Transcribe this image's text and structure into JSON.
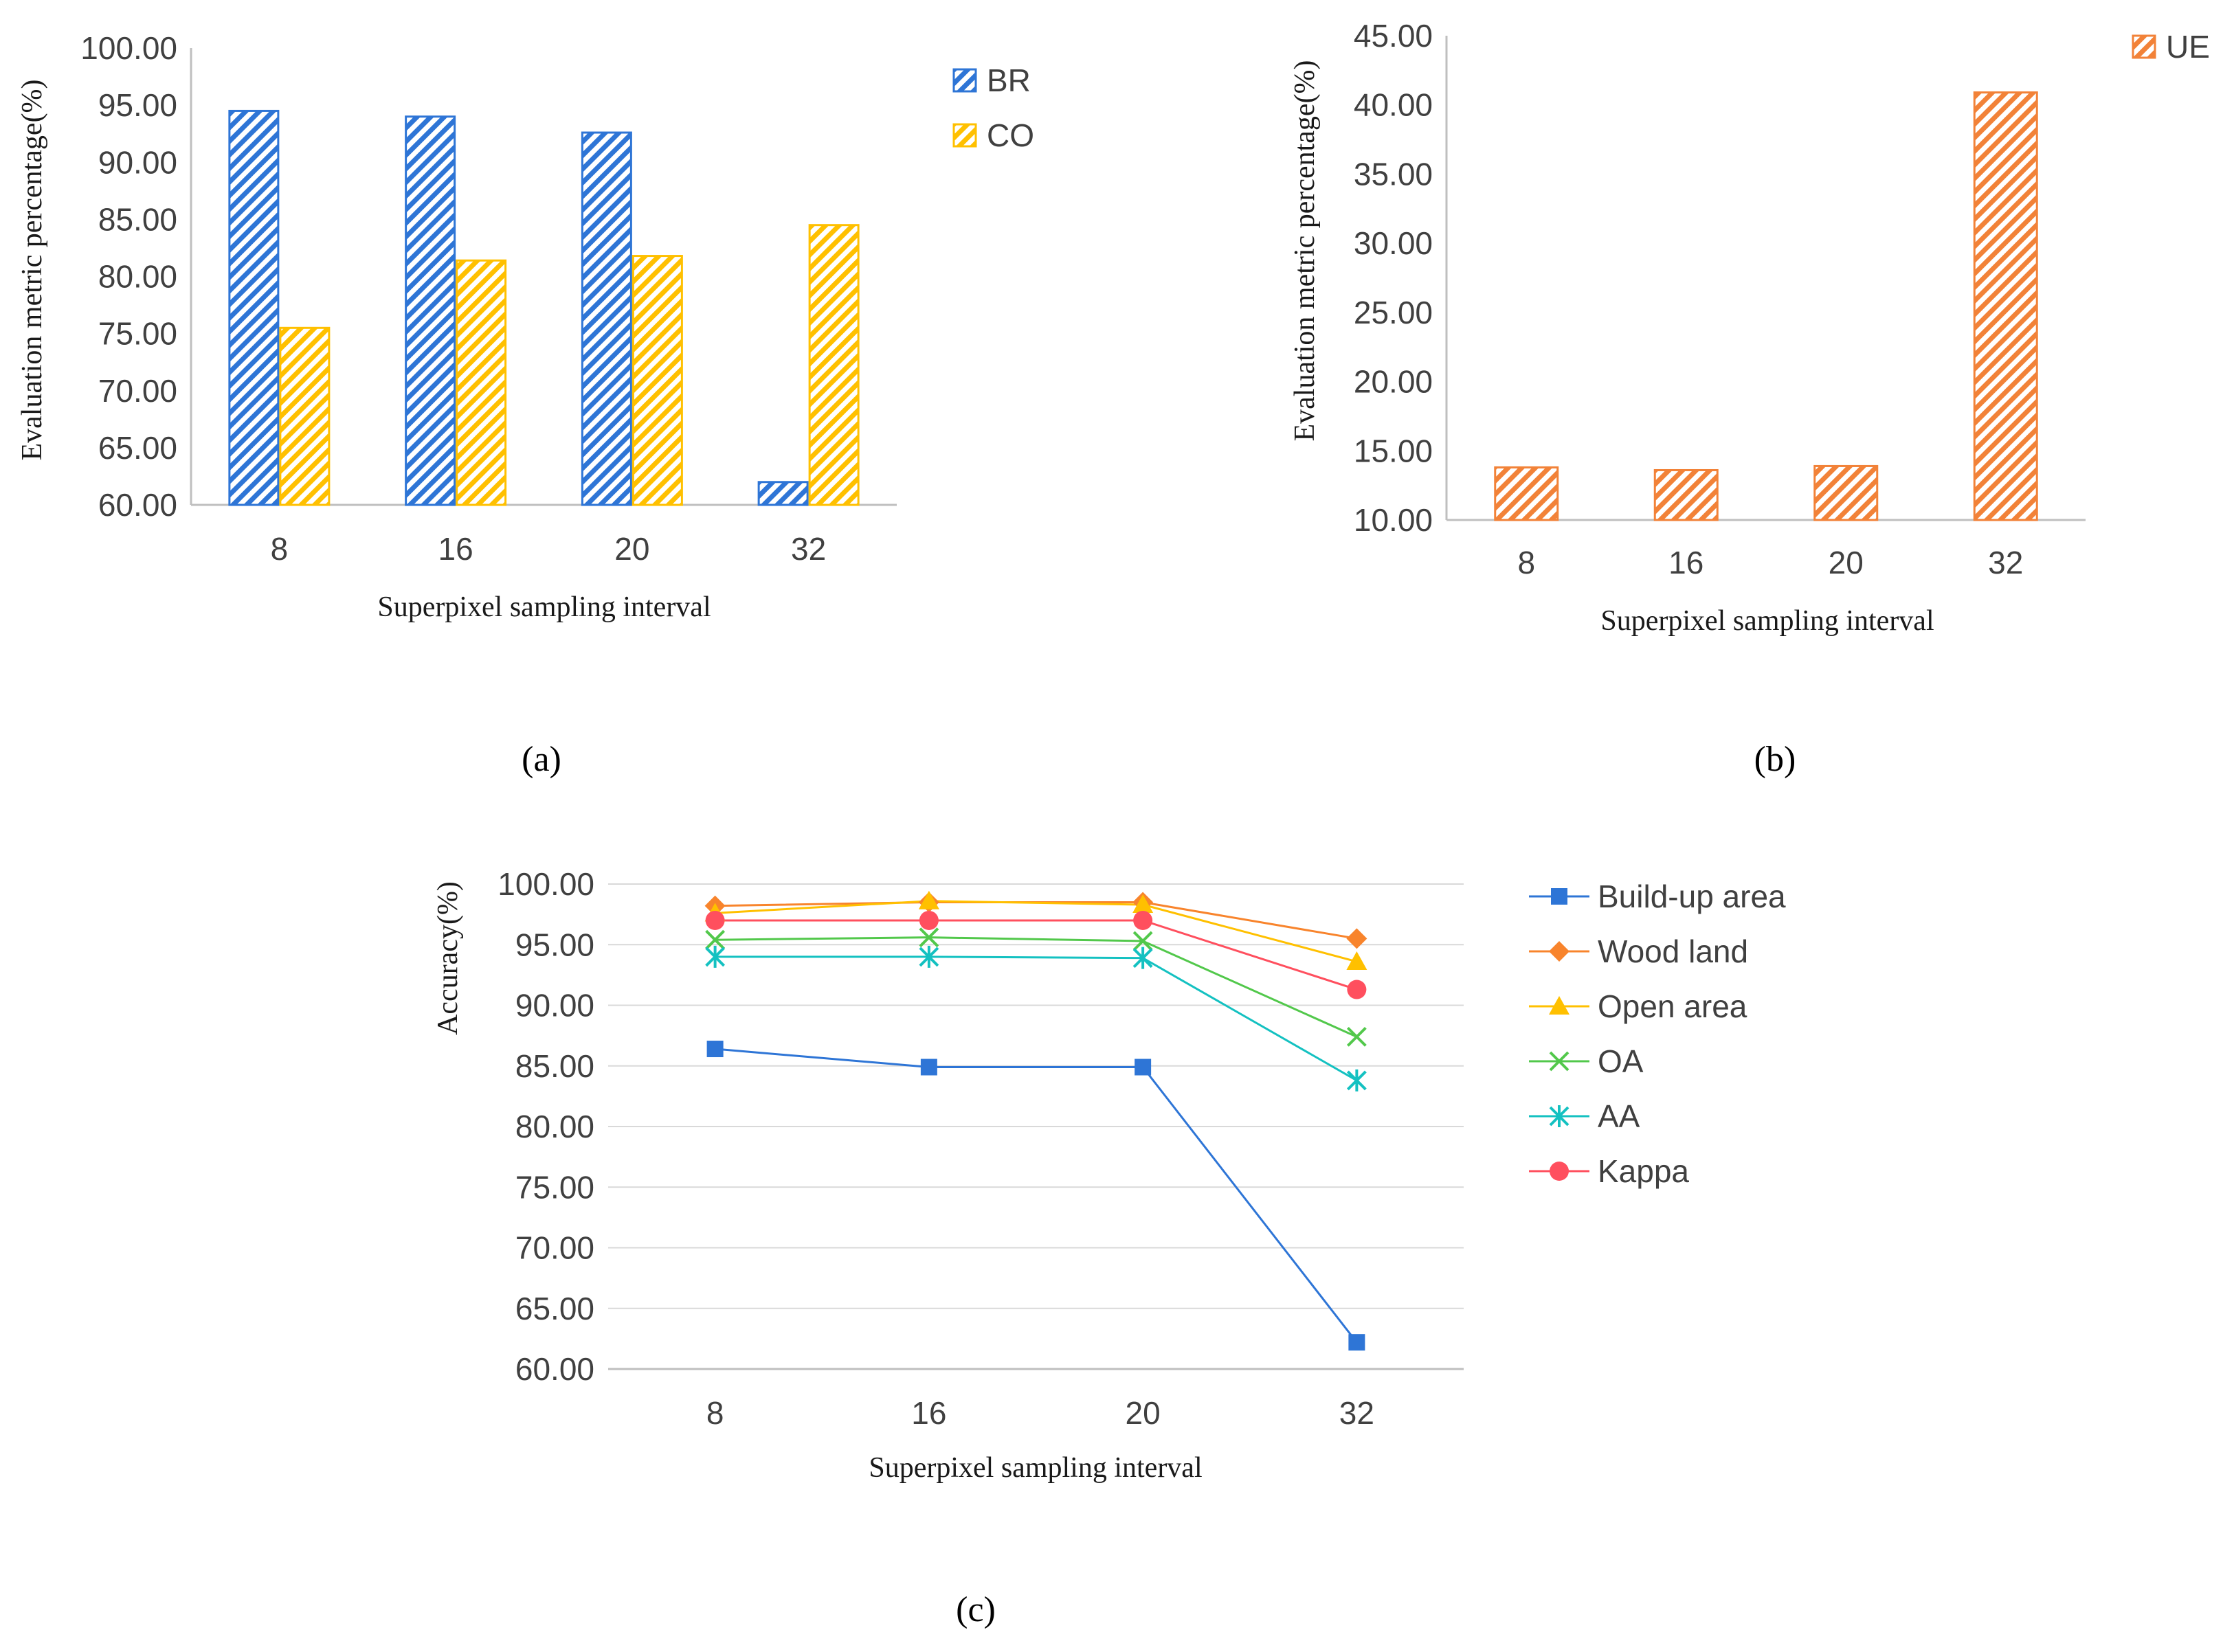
{
  "colors": {
    "BR": "#2E75D6",
    "CO": "#FFC000",
    "UE": "#F28238",
    "Build-up area": "#2E75D6",
    "Wood land": "#F8842C",
    "Open area": "#FFC000",
    "OA": "#52C84B",
    "AA": "#14C1C1",
    "Kappa": "#FF4F5E",
    "grid": "#D9D9D9",
    "axis_line": "#BFBFBF"
  },
  "chart_data": [
    {
      "type": "bar",
      "panel_label": "(a)",
      "categories": [
        "8",
        "16",
        "20",
        "32"
      ],
      "series": [
        {
          "name": "BR",
          "values": [
            94.5,
            94.0,
            92.6,
            62.0
          ],
          "icon": "diagonal-hatch"
        },
        {
          "name": "CO",
          "values": [
            75.5,
            81.4,
            81.8,
            84.5
          ],
          "icon": "diagonal-hatch"
        }
      ],
      "yticks": [
        "100.00",
        "95.00",
        "90.00",
        "85.00",
        "80.00",
        "75.00",
        "70.00",
        "65.00",
        "60.00"
      ],
      "ylim": [
        60,
        100
      ],
      "xlabel": "Superpixel sampling interval",
      "ylabel": "Evaluation metric percentage(%)",
      "legend": "top-right",
      "grid": false
    },
    {
      "type": "bar",
      "panel_label": "(b)",
      "categories": [
        "8",
        "16",
        "20",
        "32"
      ],
      "series": [
        {
          "name": "UE",
          "values": [
            13.8,
            13.6,
            13.9,
            40.9
          ],
          "icon": "diagonal-hatch"
        }
      ],
      "yticks": [
        "45.00",
        "40.00",
        "35.00",
        "30.00",
        "25.00",
        "20.00",
        "15.00",
        "10.00"
      ],
      "ylim": [
        10,
        45
      ],
      "xlabel": "Superpixel sampling interval",
      "ylabel": "Evaluation metric percentage(%)",
      "legend": "top-right",
      "grid": false
    },
    {
      "type": "line",
      "panel_label": "(c)",
      "categories": [
        "8",
        "16",
        "20",
        "32"
      ],
      "series": [
        {
          "name": "Build-up area",
          "values": [
            86.4,
            84.9,
            84.9,
            62.2
          ],
          "marker": "square"
        },
        {
          "name": "Wood land",
          "values": [
            98.2,
            98.5,
            98.5,
            95.5
          ],
          "marker": "diamond"
        },
        {
          "name": "Open area",
          "values": [
            97.6,
            98.6,
            98.3,
            93.6
          ],
          "marker": "triangle"
        },
        {
          "name": "OA",
          "values": [
            95.4,
            95.6,
            95.3,
            87.4
          ],
          "marker": "x"
        },
        {
          "name": "AA",
          "values": [
            94.0,
            94.0,
            93.9,
            83.8
          ],
          "marker": "star"
        },
        {
          "name": "Kappa",
          "values": [
            97.0,
            97.0,
            97.0,
            91.3
          ],
          "marker": "circle"
        }
      ],
      "yticks": [
        "100.00",
        "95.00",
        "90.00",
        "85.00",
        "80.00",
        "75.00",
        "70.00",
        "65.00",
        "60.00"
      ],
      "ylim": [
        60,
        100
      ],
      "xlabel": "Superpixel sampling interval",
      "ylabel": "Accuracy(%)",
      "legend": "right",
      "grid": true
    }
  ]
}
